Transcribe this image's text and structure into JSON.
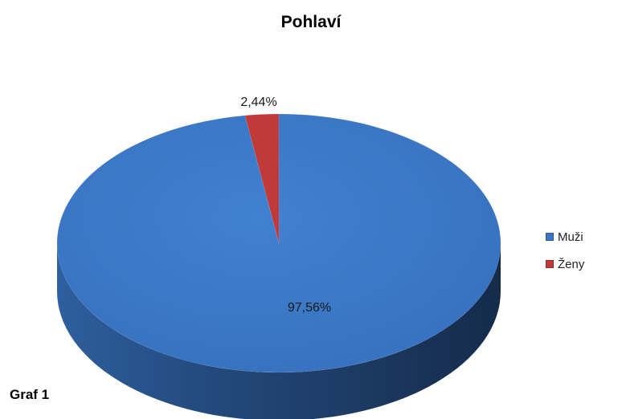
{
  "chart_data": {
    "type": "pie",
    "title": "Pohlaví",
    "categories": [
      "Muži",
      "Ženy"
    ],
    "values": [
      97.56,
      2.44
    ],
    "data_labels": [
      "97,56%",
      "2,44%"
    ],
    "colors": [
      "#3b76c4",
      "#c0393b"
    ],
    "legend_position": "right",
    "style": "3d"
  },
  "footer": {
    "caption": "Graf 1"
  }
}
